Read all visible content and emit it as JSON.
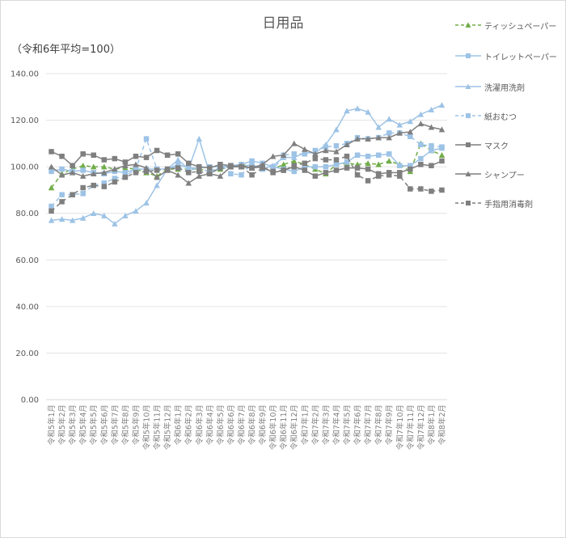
{
  "chart_data": {
    "type": "line",
    "title": "日用品",
    "subtitle": "（令和6年平均=100）",
    "xlabel": "",
    "ylabel": "",
    "ylim": [
      0,
      140
    ],
    "yticks": [
      "0.00",
      "20.00",
      "40.00",
      "60.00",
      "80.00",
      "100.00",
      "120.00",
      "140.00"
    ],
    "grid": true,
    "legend_position": "right",
    "categories": [
      "令和5年1月",
      "令和5年2月",
      "令和5年3月",
      "令和5年4月",
      "令和5年5月",
      "令和5年6月",
      "令和5年7月",
      "令和5年8月",
      "令和5年9月",
      "令和5年10月",
      "令和5年11月",
      "令和5年12月",
      "令和6年1月",
      "令和6年2月",
      "令和6年3月",
      "令和6年4月",
      "令和6年5月",
      "令和6年6月",
      "令和6年7月",
      "令和6年8月",
      "令和6年9月",
      "令和6年10月",
      "令和6年11月",
      "令和6年12月",
      "令和7年1月",
      "令和7年2月",
      "令和7年3月",
      "令和7年4月",
      "令和7年5月",
      "令和7年6月",
      "令和7年7月",
      "令和7年8月",
      "令和7年9月",
      "令和7年10月",
      "令和7年11月",
      "令和7年12月",
      "令和8年1月",
      "令和8年2月"
    ],
    "series": [
      {
        "name": "ティッシュペーパー",
        "color": "#70ad47",
        "dash": true,
        "marker": "triangle",
        "values": [
          91,
          97,
          99,
          100.5,
          100,
          100,
          99,
          99.5,
          99,
          97.5,
          96,
          99,
          99,
          99,
          99,
          98,
          99,
          100,
          101,
          100,
          99.5,
          99,
          101,
          102.5,
          101,
          99,
          97,
          101,
          101.5,
          101,
          101.5,
          101,
          102.5,
          101,
          98,
          110,
          107,
          105
        ]
      },
      {
        "name": "トイレットペーパー",
        "color": "#9dc3e6",
        "dash": false,
        "marker": "square",
        "values": [
          98,
          99,
          98,
          98.5,
          97.5,
          97,
          98,
          97.5,
          99,
          99,
          99,
          99,
          101,
          99.5,
          99.5,
          100,
          100,
          100.5,
          101,
          102.5,
          101.5,
          100,
          99,
          98,
          100,
          100,
          100,
          101,
          102,
          105,
          104.5,
          105,
          105.5,
          100.5,
          100.5,
          103.5,
          107,
          108
        ]
      },
      {
        "name": "洗濯用洗剤",
        "color": "#9dc3e6",
        "dash": false,
        "marker": "triangle",
        "values": [
          77,
          77.5,
          77,
          78,
          80,
          79,
          75.5,
          79,
          81,
          84.5,
          92,
          99,
          103,
          99,
          112,
          97,
          100,
          100,
          100,
          101,
          99,
          100.5,
          104,
          104,
          106,
          106,
          109.5,
          116,
          124,
          125,
          123.5,
          117,
          120.5,
          118,
          119.5,
          122.5,
          124.5,
          126.5
        ]
      },
      {
        "name": "紙おむつ",
        "color": "#9dc3e6",
        "dash": true,
        "marker": "square",
        "values": [
          83,
          88,
          88,
          88.5,
          92,
          93,
          95,
          96,
          99,
          112,
          99,
          99,
          100,
          98,
          100,
          97.5,
          101,
          97,
          96.5,
          101.5,
          99,
          98.5,
          105,
          105.5,
          105.5,
          107,
          108.5,
          109,
          110,
          112.5,
          112,
          112.5,
          114.5,
          114.5,
          113,
          109.5,
          109,
          108.5
        ]
      },
      {
        "name": "マスク",
        "color": "#7f7f7f",
        "dash": false,
        "marker": "square",
        "values": [
          106.5,
          104.5,
          100.5,
          105.5,
          105,
          103,
          103.5,
          102,
          104.5,
          104,
          107,
          105,
          105.5,
          101.5,
          100,
          99.5,
          101,
          100.5,
          100,
          99.5,
          100,
          97.5,
          98.5,
          100,
          98.5,
          96,
          97.5,
          98.5,
          99.5,
          99.5,
          99,
          97,
          97.5,
          97.5,
          99,
          101,
          100.5,
          102.5
        ]
      },
      {
        "name": "シャンプー",
        "color": "#7f7f7f",
        "dash": false,
        "marker": "triangle",
        "values": [
          100,
          96.5,
          97.5,
          96,
          97,
          97.5,
          99,
          100.5,
          101,
          99.5,
          95.5,
          98.5,
          96.5,
          93,
          96,
          97,
          96,
          100,
          100.5,
          99.5,
          101,
          104.5,
          105,
          110,
          107.5,
          105.5,
          107,
          106.5,
          109.5,
          112,
          112,
          112.5,
          112.5,
          114.5,
          115,
          118.5,
          117,
          116
        ]
      },
      {
        "name": "手指用消毒剤",
        "color": "#7f7f7f",
        "dash": true,
        "marker": "square",
        "values": [
          81,
          85,
          88,
          91,
          92,
          91.5,
          93.5,
          95.5,
          97.5,
          98,
          98.5,
          99,
          99.5,
          97.5,
          98,
          97,
          99.5,
          100,
          100,
          96.5,
          99.5,
          98,
          98.5,
          100.5,
          101.5,
          103.5,
          103,
          103,
          104.5,
          96.5,
          94,
          96,
          96.5,
          96,
          90.5,
          90.5,
          89.5,
          90
        ]
      }
    ]
  }
}
